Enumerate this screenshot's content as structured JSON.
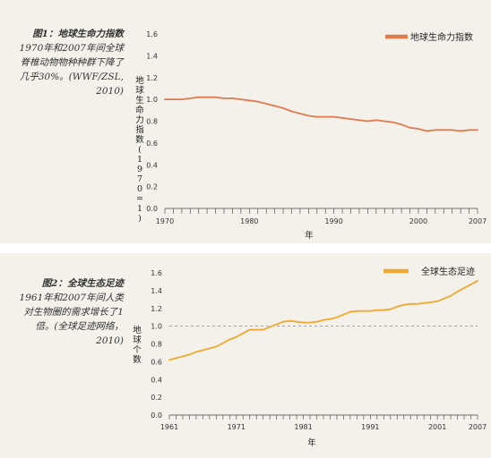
{
  "captions": [
    {
      "title": "图1：地球生命力指数",
      "body": "1970年和2007年间全球脊椎动物物种种群下降了几乎30%。(WWF/ZSL, 2010)"
    },
    {
      "title": "图2：全球生态足迹",
      "body": "1961年和2007年间人类对生物圈的需求增长了1倍。(全球足迹网络，2010)"
    }
  ],
  "chart_data": [
    {
      "type": "line",
      "ylabel": "地球生命力指数(1970=1)",
      "xlabel": "年",
      "x_ticks": [
        "1970",
        "1980",
        "1990",
        "2000",
        "2007"
      ],
      "y_ticks": [
        "0.0",
        "0.2",
        "0.4",
        "0.6",
        "0.8",
        "1.0",
        "1.2",
        "1.4",
        "1.6"
      ],
      "xlim": [
        1970,
        2007
      ],
      "ylim": [
        0,
        1.6
      ],
      "grid": false,
      "legend": "top-right",
      "series": [
        {
          "name": "地球生命力指数",
          "color": "#e07a4f",
          "x": [
            1970,
            1971,
            1972,
            1973,
            1974,
            1975,
            1976,
            1977,
            1978,
            1979,
            1980,
            1981,
            1982,
            1983,
            1984,
            1985,
            1986,
            1987,
            1988,
            1989,
            1990,
            1991,
            1992,
            1993,
            1994,
            1995,
            1996,
            1997,
            1998,
            1999,
            2000,
            2001,
            2002,
            2003,
            2004,
            2005,
            2006,
            2007
          ],
          "values": [
            1.0,
            1.0,
            1.0,
            1.01,
            1.02,
            1.02,
            1.02,
            1.01,
            1.01,
            1.0,
            0.99,
            0.98,
            0.96,
            0.94,
            0.92,
            0.89,
            0.87,
            0.85,
            0.84,
            0.84,
            0.84,
            0.83,
            0.82,
            0.81,
            0.8,
            0.81,
            0.8,
            0.79,
            0.77,
            0.74,
            0.73,
            0.71,
            0.72,
            0.72,
            0.72,
            0.71,
            0.72,
            0.72
          ]
        }
      ]
    },
    {
      "type": "line",
      "ylabel": "地球个数",
      "xlabel": "年",
      "x_ticks": [
        "1961",
        "1971",
        "1981",
        "1991",
        "2001",
        "2007"
      ],
      "y_ticks": [
        "0.0",
        "0.2",
        "0.4",
        "0.6",
        "0.8",
        "1.0",
        "1.2",
        "1.4",
        "1.6"
      ],
      "xlim": [
        1961,
        2007
      ],
      "ylim": [
        0,
        1.6
      ],
      "reference_line": 1.0,
      "grid": false,
      "legend": "top-right",
      "series": [
        {
          "name": "全球生态足迹",
          "color": "#f0a830",
          "x": [
            1961,
            1962,
            1963,
            1964,
            1965,
            1966,
            1967,
            1968,
            1969,
            1970,
            1971,
            1972,
            1973,
            1974,
            1975,
            1976,
            1977,
            1978,
            1979,
            1980,
            1981,
            1982,
            1983,
            1984,
            1985,
            1986,
            1987,
            1988,
            1989,
            1990,
            1991,
            1992,
            1993,
            1994,
            1995,
            1996,
            1997,
            1998,
            1999,
            2000,
            2001,
            2002,
            2003,
            2004,
            2005,
            2006,
            2007
          ],
          "values": [
            0.62,
            0.64,
            0.66,
            0.68,
            0.71,
            0.73,
            0.75,
            0.77,
            0.81,
            0.85,
            0.88,
            0.92,
            0.96,
            0.96,
            0.96,
            0.99,
            1.02,
            1.05,
            1.06,
            1.05,
            1.04,
            1.04,
            1.05,
            1.07,
            1.08,
            1.1,
            1.13,
            1.16,
            1.17,
            1.17,
            1.17,
            1.18,
            1.18,
            1.19,
            1.22,
            1.24,
            1.25,
            1.25,
            1.26,
            1.27,
            1.28,
            1.31,
            1.34,
            1.39,
            1.43,
            1.47,
            1.51
          ]
        }
      ]
    }
  ]
}
